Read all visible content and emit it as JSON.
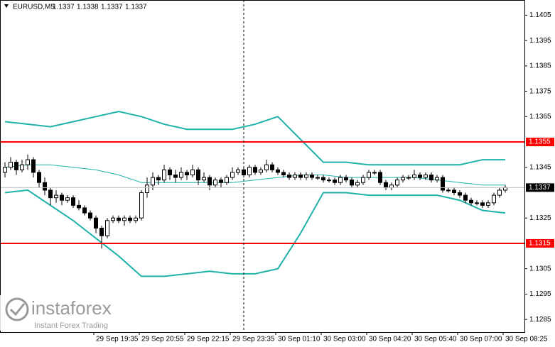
{
  "chart_data": {
    "type": "candlestick",
    "symbol": "EURUSD,M5",
    "quote": [
      1.1337,
      1.1338,
      1.1337,
      1.1337
    ],
    "candles": [
      [
        1.1343,
        1.1347,
        1.1341,
        1.1345
      ],
      [
        1.1345,
        1.1349,
        1.1344,
        1.1347
      ],
      [
        1.1347,
        1.1348,
        1.1342,
        1.1344
      ],
      [
        1.1344,
        1.1348,
        1.1343,
        1.1346
      ],
      [
        1.1346,
        1.135,
        1.1344,
        1.1348
      ],
      [
        1.1348,
        1.1349,
        1.1341,
        1.1343
      ],
      [
        1.1343,
        1.1344,
        1.1337,
        1.1339
      ],
      [
        1.1339,
        1.1341,
        1.1334,
        1.1336
      ],
      [
        1.1336,
        1.1337,
        1.133,
        1.1333
      ],
      [
        1.1333,
        1.1336,
        1.1331,
        1.1334
      ],
      [
        1.1334,
        1.1335,
        1.133,
        1.1332
      ],
      [
        1.1332,
        1.1334,
        1.1331,
        1.1333
      ],
      [
        1.1333,
        1.1334,
        1.1329,
        1.133
      ],
      [
        1.133,
        1.1332,
        1.1328,
        1.1329
      ],
      [
        1.1329,
        1.133,
        1.1326,
        1.1327
      ],
      [
        1.1327,
        1.1328,
        1.1324,
        1.1325
      ],
      [
        1.1325,
        1.1326,
        1.1319,
        1.1321
      ],
      [
        1.1321,
        1.1322,
        1.1313,
        1.1318
      ],
      [
        1.1318,
        1.1325,
        1.1317,
        1.1324
      ],
      [
        1.1324,
        1.1326,
        1.1323,
        1.1325
      ],
      [
        1.1325,
        1.1326,
        1.1323,
        1.1324
      ],
      [
        1.1324,
        1.1326,
        1.1322,
        1.1325
      ],
      [
        1.1325,
        1.1326,
        1.1323,
        1.1324
      ],
      [
        1.1324,
        1.1326,
        1.1323,
        1.1325
      ],
      [
        1.1325,
        1.1336,
        1.1324,
        1.1335
      ],
      [
        1.1335,
        1.1341,
        1.1333,
        1.1338
      ],
      [
        1.1338,
        1.1343,
        1.1336,
        1.1341
      ],
      [
        1.1341,
        1.1342,
        1.1338,
        1.134
      ],
      [
        1.134,
        1.1346,
        1.1339,
        1.1344
      ],
      [
        1.1344,
        1.1345,
        1.134,
        1.1342
      ],
      [
        1.1342,
        1.1344,
        1.1339,
        1.1341
      ],
      [
        1.1341,
        1.1345,
        1.134,
        1.1343
      ],
      [
        1.1343,
        1.1344,
        1.134,
        1.1342
      ],
      [
        1.1342,
        1.1346,
        1.1341,
        1.1344
      ],
      [
        1.1344,
        1.1345,
        1.1338,
        1.134
      ],
      [
        1.134,
        1.1343,
        1.1339,
        1.1341
      ],
      [
        1.1341,
        1.1342,
        1.1336,
        1.1338
      ],
      [
        1.1338,
        1.1341,
        1.1337,
        1.134
      ],
      [
        1.134,
        1.1341,
        1.1337,
        1.1339
      ],
      [
        1.1339,
        1.1342,
        1.1338,
        1.1341
      ],
      [
        1.1341,
        1.1345,
        1.134,
        1.1343
      ],
      [
        1.1343,
        1.1345,
        1.1342,
        1.1344
      ],
      [
        1.1344,
        1.1345,
        1.1341,
        1.1342
      ],
      [
        1.1342,
        1.1346,
        1.1341,
        1.1345
      ],
      [
        1.1345,
        1.1346,
        1.1342,
        1.1343
      ],
      [
        1.1343,
        1.1345,
        1.1342,
        1.1344
      ],
      [
        1.1344,
        1.1348,
        1.1343,
        1.1346
      ],
      [
        1.1346,
        1.1347,
        1.1343,
        1.1344
      ],
      [
        1.1344,
        1.1345,
        1.1342,
        1.1343
      ],
      [
        1.1343,
        1.1344,
        1.1341,
        1.1342
      ],
      [
        1.1342,
        1.1343,
        1.134,
        1.1341
      ],
      [
        1.1341,
        1.1343,
        1.134,
        1.1342
      ],
      [
        1.1342,
        1.1343,
        1.134,
        1.1341
      ],
      [
        1.1341,
        1.1343,
        1.134,
        1.1342
      ],
      [
        1.1342,
        1.1343,
        1.134,
        1.1341
      ],
      [
        1.1341,
        1.1342,
        1.134,
        1.1341
      ],
      [
        1.1341,
        1.1342,
        1.1339,
        1.134
      ],
      [
        1.134,
        1.1341,
        1.1339,
        1.134
      ],
      [
        1.134,
        1.1341,
        1.1338,
        1.1339
      ],
      [
        1.1339,
        1.1342,
        1.1338,
        1.1341
      ],
      [
        1.1341,
        1.1342,
        1.1339,
        1.134
      ],
      [
        1.134,
        1.1341,
        1.1337,
        1.1338
      ],
      [
        1.1338,
        1.134,
        1.1337,
        1.1339
      ],
      [
        1.1339,
        1.1342,
        1.1338,
        1.1341
      ],
      [
        1.1341,
        1.1344,
        1.134,
        1.1343
      ],
      [
        1.1343,
        1.1344,
        1.1342,
        1.1343
      ],
      [
        1.1343,
        1.1344,
        1.1338,
        1.1339
      ],
      [
        1.1339,
        1.134,
        1.1336,
        1.1337
      ],
      [
        1.1337,
        1.1339,
        1.1336,
        1.1338
      ],
      [
        1.1338,
        1.1341,
        1.1337,
        1.134
      ],
      [
        1.134,
        1.1342,
        1.1339,
        1.1341
      ],
      [
        1.1341,
        1.1342,
        1.134,
        1.1341
      ],
      [
        1.1341,
        1.1344,
        1.134,
        1.1342
      ],
      [
        1.1342,
        1.1343,
        1.134,
        1.1341
      ],
      [
        1.1341,
        1.1343,
        1.134,
        1.1342
      ],
      [
        1.1342,
        1.1343,
        1.1339,
        1.134
      ],
      [
        1.134,
        1.1342,
        1.1339,
        1.1341
      ],
      [
        1.1341,
        1.1342,
        1.1335,
        1.1336
      ],
      [
        1.1336,
        1.1337,
        1.1335,
        1.1336
      ],
      [
        1.1336,
        1.1337,
        1.1334,
        1.1335
      ],
      [
        1.1335,
        1.1336,
        1.1333,
        1.1334
      ],
      [
        1.1334,
        1.1335,
        1.1331,
        1.1332
      ],
      [
        1.1332,
        1.1333,
        1.133,
        1.1331
      ],
      [
        1.1331,
        1.1332,
        1.133,
        1.1331
      ],
      [
        1.1331,
        1.1332,
        1.1329,
        1.133
      ],
      [
        1.133,
        1.1332,
        1.1329,
        1.1331
      ],
      [
        1.1331,
        1.1335,
        1.133,
        1.1334
      ],
      [
        1.1334,
        1.1337,
        1.1333,
        1.1336
      ],
      [
        1.1336,
        1.1338,
        1.1335,
        1.1337
      ]
    ],
    "bands": {
      "color": "#20b2aa",
      "x": [
        0,
        4,
        8,
        12,
        16,
        20,
        24,
        28,
        32,
        36,
        40,
        44,
        48,
        52,
        56,
        60,
        64,
        68,
        72,
        76,
        80,
        84,
        88
      ],
      "upper": [
        1.1363,
        1.1362,
        1.1361,
        1.1363,
        1.1365,
        1.1367,
        1.1365,
        1.1362,
        1.136,
        1.136,
        1.136,
        1.1362,
        1.1365,
        1.1356,
        1.1347,
        1.1347,
        1.1346,
        1.1346,
        1.1346,
        1.1346,
        1.1346,
        1.1348,
        1.1348
      ],
      "middle": [
        1.1345,
        1.1346,
        1.1346,
        1.1345,
        1.1344,
        1.1342,
        1.1339,
        1.1339,
        1.1339,
        1.1339,
        1.1339,
        1.134,
        1.1341,
        1.1342,
        1.1342,
        1.1341,
        1.1341,
        1.1341,
        1.1341,
        1.134,
        1.1339,
        1.1338,
        1.1338
      ],
      "lower": [
        1.1335,
        1.1336,
        1.133,
        1.1324,
        1.1317,
        1.131,
        1.1302,
        1.1302,
        1.1303,
        1.1304,
        1.1303,
        1.1303,
        1.1305,
        1.1319,
        1.1335,
        1.1335,
        1.1334,
        1.1334,
        1.1334,
        1.1334,
        1.1332,
        1.1328,
        1.1327
      ]
    },
    "levels": [
      1.1355,
      1.1315
    ],
    "level_color": "#ff0000",
    "current_price": 1.1337,
    "ylim": [
      1.128,
      1.1411
    ],
    "yticks": [
      1.1405,
      1.1395,
      1.1385,
      1.1375,
      1.1365,
      1.1345,
      1.1325,
      1.1305,
      1.1295,
      1.1285
    ],
    "x_labels": [
      "29 Sep 19:35",
      "29 Sep 20:55",
      "29 Sep 22:15",
      "29 Sep 23:35",
      "30 Sep 01:10",
      "30 Sep 03:00",
      "30 Sep 04:20",
      "30 Sep 05:40",
      "30 Sep 07:00",
      "30 Sep 08:25"
    ]
  },
  "watermark": {
    "brand": "instaforex",
    "tagline": "Instant Forex Trading"
  }
}
